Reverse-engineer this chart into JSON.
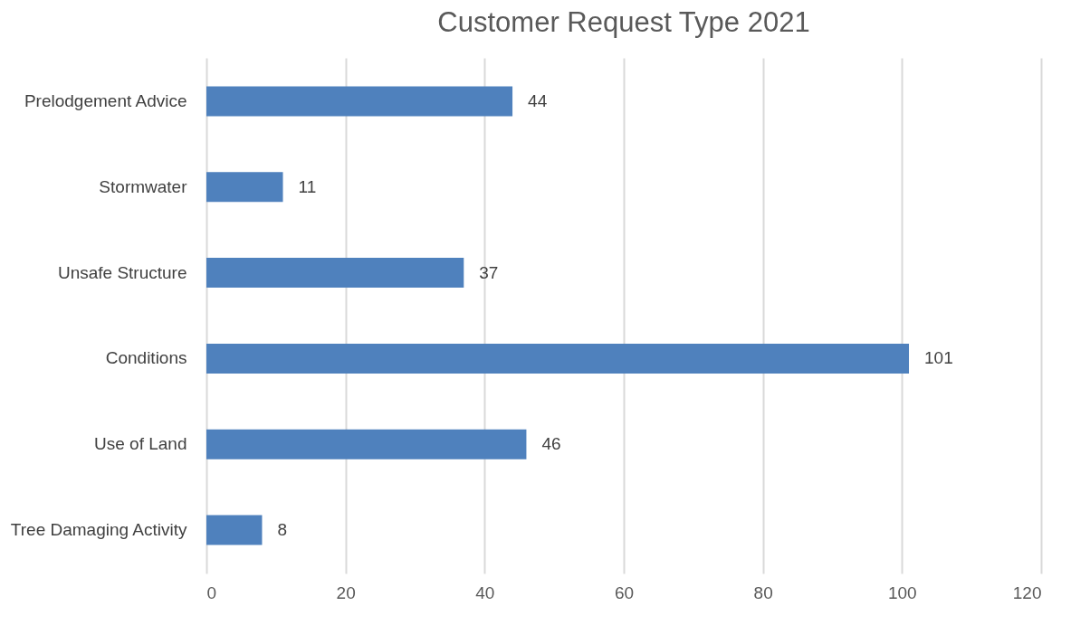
{
  "chart_data": {
    "type": "bar",
    "orientation": "horizontal",
    "title": "Customer Request Type 2021",
    "categories": [
      "Prelodgement Advice",
      "Stormwater",
      "Unsafe Structure",
      "Conditions",
      "Use of Land",
      "Tree Damaging Activity"
    ],
    "values": [
      44,
      11,
      37,
      101,
      46,
      8
    ],
    "color": "#4f81bd",
    "xlim": [
      0,
      120
    ],
    "xticks": [
      0,
      20,
      40,
      60,
      80,
      100,
      120
    ],
    "grid": "x",
    "data_labels": true
  }
}
